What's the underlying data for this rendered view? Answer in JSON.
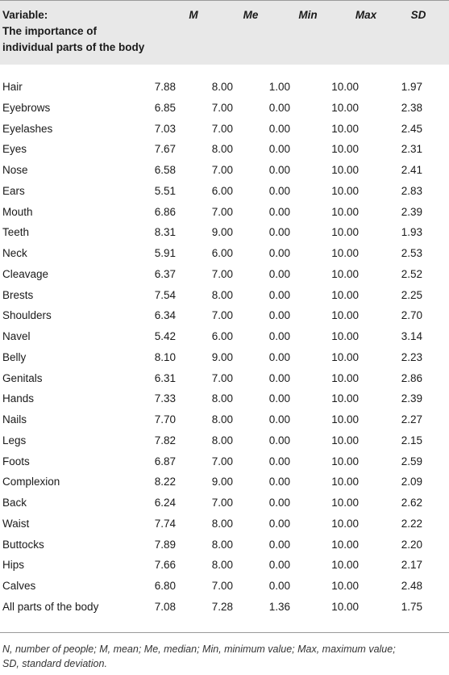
{
  "header": {
    "variable_line1": "Variable:",
    "variable_line2": "The importance of",
    "variable_line3": "individual parts of the body",
    "m": "M",
    "me": "Me",
    "min": "Min",
    "max": "Max",
    "sd": "SD"
  },
  "rows": [
    {
      "name": "Hair",
      "m": "7.88",
      "me": "8.00",
      "min": "1.00",
      "max": "10.00",
      "sd": "1.97"
    },
    {
      "name": "Eyebrows",
      "m": "6.85",
      "me": "7.00",
      "min": "0.00",
      "max": "10.00",
      "sd": "2.38"
    },
    {
      "name": "Eyelashes",
      "m": "7.03",
      "me": "7.00",
      "min": "0.00",
      "max": "10.00",
      "sd": "2.45"
    },
    {
      "name": "Eyes",
      "m": "7.67",
      "me": "8.00",
      "min": "0.00",
      "max": "10.00",
      "sd": "2.31"
    },
    {
      "name": "Nose",
      "m": "6.58",
      "me": "7.00",
      "min": "0.00",
      "max": "10.00",
      "sd": "2.41"
    },
    {
      "name": "Ears",
      "m": "5.51",
      "me": "6.00",
      "min": "0.00",
      "max": "10.00",
      "sd": "2.83"
    },
    {
      "name": "Mouth",
      "m": "6.86",
      "me": "7.00",
      "min": "0.00",
      "max": "10.00",
      "sd": "2.39"
    },
    {
      "name": "Teeth",
      "m": "8.31",
      "me": "9.00",
      "min": "0.00",
      "max": "10.00",
      "sd": "1.93"
    },
    {
      "name": "Neck",
      "m": "5.91",
      "me": "6.00",
      "min": "0.00",
      "max": "10.00",
      "sd": "2.53"
    },
    {
      "name": "Cleavage",
      "m": "6.37",
      "me": "7.00",
      "min": "0.00",
      "max": "10.00",
      "sd": "2.52"
    },
    {
      "name": "Brests",
      "m": "7.54",
      "me": "8.00",
      "min": "0.00",
      "max": "10.00",
      "sd": "2.25"
    },
    {
      "name": "Shoulders",
      "m": "6.34",
      "me": "7.00",
      "min": "0.00",
      "max": "10.00",
      "sd": "2.70"
    },
    {
      "name": "Navel",
      "m": "5.42",
      "me": "6.00",
      "min": "0.00",
      "max": "10.00",
      "sd": "3.14"
    },
    {
      "name": "Belly",
      "m": "8.10",
      "me": "9.00",
      "min": "0.00",
      "max": "10.00",
      "sd": "2.23"
    },
    {
      "name": "Genitals",
      "m": "6.31",
      "me": "7.00",
      "min": "0.00",
      "max": "10.00",
      "sd": "2.86"
    },
    {
      "name": "Hands",
      "m": "7.33",
      "me": "8.00",
      "min": "0.00",
      "max": "10.00",
      "sd": "2.39"
    },
    {
      "name": "Nails",
      "m": "7.70",
      "me": "8.00",
      "min": "0.00",
      "max": "10.00",
      "sd": "2.27"
    },
    {
      "name": "Legs",
      "m": "7.82",
      "me": "8.00",
      "min": "0.00",
      "max": "10.00",
      "sd": "2.15"
    },
    {
      "name": "Foots",
      "m": "6.87",
      "me": "7.00",
      "min": "0.00",
      "max": "10.00",
      "sd": "2.59"
    },
    {
      "name": "Complexion",
      "m": "8.22",
      "me": "9.00",
      "min": "0.00",
      "max": "10.00",
      "sd": "2.09"
    },
    {
      "name": "Back",
      "m": "6.24",
      "me": "7.00",
      "min": "0.00",
      "max": "10.00",
      "sd": "2.62"
    },
    {
      "name": "Waist",
      "m": "7.74",
      "me": "8.00",
      "min": "0.00",
      "max": "10.00",
      "sd": "2.22"
    },
    {
      "name": "Buttocks",
      "m": "7.89",
      "me": "8.00",
      "min": "0.00",
      "max": "10.00",
      "sd": "2.20"
    },
    {
      "name": "Hips",
      "m": "7.66",
      "me": "8.00",
      "min": "0.00",
      "max": "10.00",
      "sd": "2.17"
    },
    {
      "name": "Calves",
      "m": "6.80",
      "me": "7.00",
      "min": "0.00",
      "max": "10.00",
      "sd": "2.48"
    },
    {
      "name": "All parts of the body",
      "m": "7.08",
      "me": "7.28",
      "min": "1.36",
      "max": "10.00",
      "sd": "1.75"
    }
  ],
  "footnote": {
    "line1": "N, number of people; M, mean; Me, median; Min, minimum value; Max, maximum value;",
    "line2": "SD, standard deviation."
  }
}
